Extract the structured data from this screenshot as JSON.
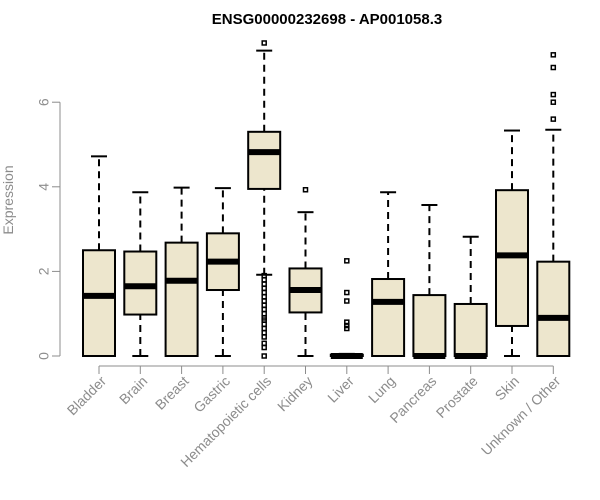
{
  "chart_data": {
    "type": "boxplot",
    "title": "ENSG00000232698 - AP001058.3",
    "ylabel": "Expression",
    "xlabel": "",
    "ylim": [
      0,
      7.3
    ],
    "yticks": [
      0,
      2,
      4,
      6
    ],
    "box_fill": "#ede6cd",
    "categories": [
      "Bladder",
      "Brain",
      "Breast",
      "Gastric",
      "Hematopoietic cells",
      "Kidney",
      "Liver",
      "Lung",
      "Pancreas",
      "Prostate",
      "Skin",
      "Unknown / Other"
    ],
    "series": [
      {
        "min": 0,
        "q1": 0,
        "median": 1.42,
        "q3": 2.5,
        "max": 4.72,
        "outliers": []
      },
      {
        "min": 0,
        "q1": 0.98,
        "median": 1.65,
        "q3": 2.47,
        "max": 3.87,
        "outliers": []
      },
      {
        "min": 0,
        "q1": 0,
        "median": 1.78,
        "q3": 2.68,
        "max": 3.98,
        "outliers": []
      },
      {
        "min": 0,
        "q1": 1.56,
        "median": 2.23,
        "q3": 2.9,
        "max": 3.97,
        "outliers": []
      },
      {
        "min": 1.92,
        "q1": 3.95,
        "median": 4.82,
        "q3": 5.3,
        "max": 7.22,
        "outliers": [
          7.4,
          1.9,
          1.8,
          1.7,
          1.6,
          1.5,
          1.4,
          1.3,
          1.2,
          1.1,
          1.0,
          0.9,
          0.85,
          0.75,
          0.65,
          0.55,
          0.45,
          0.3,
          0.2,
          0.0
        ]
      },
      {
        "min": 0,
        "q1": 1.03,
        "median": 1.56,
        "q3": 2.07,
        "max": 3.4,
        "outliers": [
          3.93
        ]
      },
      {
        "min": 0,
        "q1": 0,
        "median": 0,
        "q3": 0.03,
        "max": 0.05,
        "outliers": [
          2.25,
          1.5,
          1.3,
          0.8,
          0.72,
          0.65
        ]
      },
      {
        "min": 0,
        "q1": 0,
        "median": 1.28,
        "q3": 1.82,
        "max": 3.87,
        "outliers": []
      },
      {
        "min": 0,
        "q1": 0,
        "median": 0,
        "q3": 1.44,
        "max": 3.57,
        "outliers": []
      },
      {
        "min": 0,
        "q1": 0,
        "median": 0,
        "q3": 1.23,
        "max": 2.82,
        "outliers": []
      },
      {
        "min": 0,
        "q1": 0.71,
        "median": 2.38,
        "q3": 3.92,
        "max": 5.33,
        "outliers": []
      },
      {
        "min": 0,
        "q1": 0,
        "median": 0.9,
        "q3": 2.23,
        "max": 5.35,
        "outliers": [
          7.12,
          6.82,
          6.18,
          6.0,
          5.6
        ]
      }
    ]
  }
}
